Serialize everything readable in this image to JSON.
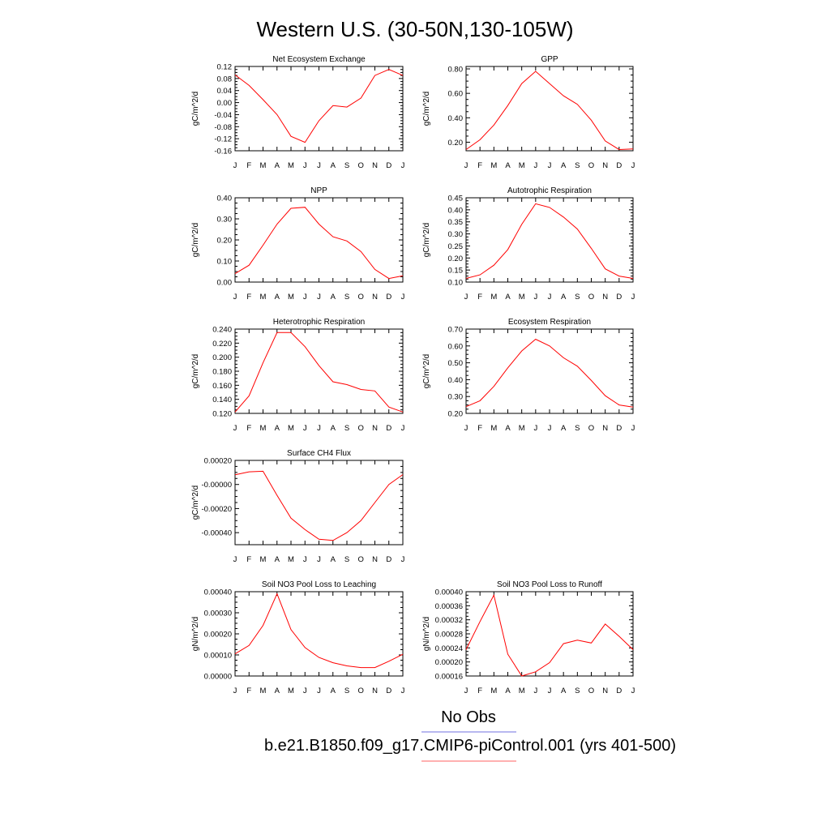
{
  "page": {
    "title": "Western U.S. (30-50N,130-105W)"
  },
  "legend": {
    "entries": [
      {
        "label": "No Obs",
        "color": "#7070e0"
      },
      {
        "label": "b.e21.B1850.f09_g17.CMIP6-piControl.001 (yrs 401-500)",
        "color": "#ff6060"
      }
    ]
  },
  "chart_data": [
    {
      "type": "line",
      "title": "Net Ecosystem Exchange",
      "ylabel": "gC/m^2/d",
      "x": [
        "J",
        "F",
        "M",
        "A",
        "M",
        "J",
        "J",
        "A",
        "S",
        "O",
        "N",
        "D",
        "J"
      ],
      "ylim": [
        -0.16,
        0.12
      ],
      "yticks": [
        "0.12",
        "0.08",
        "0.04",
        "0.00",
        "-0.04",
        "-0.08",
        "-0.12",
        "-0.16"
      ],
      "series": [
        {
          "color": "#ff0000",
          "values": [
            0.092,
            0.057,
            0.01,
            -0.04,
            -0.112,
            -0.132,
            -0.06,
            -0.01,
            -0.015,
            0.015,
            0.09,
            0.11,
            0.09
          ]
        }
      ],
      "grid": false
    },
    {
      "type": "line",
      "title": "GPP",
      "ylabel": "gC/m^2/d",
      "x": [
        "J",
        "F",
        "M",
        "A",
        "M",
        "J",
        "J",
        "A",
        "S",
        "O",
        "N",
        "D",
        "J"
      ],
      "ylim": [
        0.13,
        0.82
      ],
      "yticks": [
        "0.80",
        "0.60",
        "0.40",
        "0.20"
      ],
      "series": [
        {
          "color": "#ff0000",
          "values": [
            0.14,
            0.22,
            0.34,
            0.5,
            0.68,
            0.78,
            0.68,
            0.58,
            0.51,
            0.38,
            0.21,
            0.14,
            0.145
          ]
        }
      ],
      "grid": false
    },
    {
      "type": "line",
      "title": "NPP",
      "ylabel": "gC/m^2/d",
      "x": [
        "J",
        "F",
        "M",
        "A",
        "M",
        "J",
        "J",
        "A",
        "S",
        "O",
        "N",
        "D",
        "J"
      ],
      "ylim": [
        0.0,
        0.4
      ],
      "yticks": [
        "0.40",
        "0.30",
        "0.20",
        "0.10",
        "0.00"
      ],
      "series": [
        {
          "color": "#ff0000",
          "values": [
            0.04,
            0.08,
            0.175,
            0.275,
            0.35,
            0.355,
            0.275,
            0.215,
            0.195,
            0.145,
            0.06,
            0.017,
            0.03
          ]
        }
      ],
      "grid": false
    },
    {
      "type": "line",
      "title": "Autotrophic Respiration",
      "ylabel": "gC/m^2/d",
      "x": [
        "J",
        "F",
        "M",
        "A",
        "M",
        "J",
        "J",
        "A",
        "S",
        "O",
        "N",
        "D",
        "J"
      ],
      "ylim": [
        0.1,
        0.45
      ],
      "yticks": [
        "0.45",
        "0.40",
        "0.35",
        "0.30",
        "0.25",
        "0.20",
        "0.15",
        "0.10"
      ],
      "series": [
        {
          "color": "#ff0000",
          "values": [
            0.115,
            0.13,
            0.17,
            0.235,
            0.34,
            0.425,
            0.41,
            0.37,
            0.32,
            0.24,
            0.155,
            0.125,
            0.115
          ]
        }
      ],
      "grid": false
    },
    {
      "type": "line",
      "title": "Heterotrophic Respiration",
      "ylabel": "gC/m^2/d",
      "x": [
        "J",
        "F",
        "M",
        "A",
        "M",
        "J",
        "J",
        "A",
        "S",
        "O",
        "N",
        "D",
        "J"
      ],
      "ylim": [
        0.12,
        0.24
      ],
      "yticks": [
        "0.240",
        "0.220",
        "0.200",
        "0.180",
        "0.160",
        "0.140",
        "0.120"
      ],
      "series": [
        {
          "color": "#ff0000",
          "values": [
            0.122,
            0.145,
            0.192,
            0.235,
            0.235,
            0.215,
            0.188,
            0.165,
            0.161,
            0.154,
            0.152,
            0.129,
            0.122
          ]
        }
      ],
      "grid": false
    },
    {
      "type": "line",
      "title": "Ecosystem Respiration",
      "ylabel": "gC/m^2/d",
      "x": [
        "J",
        "F",
        "M",
        "A",
        "M",
        "J",
        "J",
        "A",
        "S",
        "O",
        "N",
        "D",
        "J"
      ],
      "ylim": [
        0.2,
        0.7
      ],
      "yticks": [
        "0.70",
        "0.60",
        "0.50",
        "0.40",
        "0.30",
        "0.20"
      ],
      "series": [
        {
          "color": "#ff0000",
          "values": [
            0.24,
            0.275,
            0.36,
            0.47,
            0.57,
            0.64,
            0.6,
            0.53,
            0.48,
            0.395,
            0.305,
            0.25,
            0.237
          ]
        }
      ],
      "grid": false
    },
    {
      "type": "line",
      "title": "Surface CH4 Flux",
      "ylabel": "gC/m^2/d",
      "x": [
        "J",
        "F",
        "M",
        "A",
        "M",
        "J",
        "J",
        "A",
        "S",
        "O",
        "N",
        "D",
        "J"
      ],
      "ylim": [
        -0.0005,
        0.0002
      ],
      "yticks": [
        "0.00020",
        "-0.00000",
        "-0.00020",
        "-0.00040"
      ],
      "series": [
        {
          "color": "#ff0000",
          "values": [
            8e-05,
            0.000105,
            0.00011,
            -9e-05,
            -0.00028,
            -0.000375,
            -0.000455,
            -0.000465,
            -0.0004,
            -0.0003,
            -0.00015,
            0.0,
            8.2e-05
          ]
        }
      ],
      "grid": false
    },
    {
      "type": "line",
      "title": "Soil NO3 Pool Loss to Leaching",
      "ylabel": "gN/m^2/d",
      "x": [
        "J",
        "F",
        "M",
        "A",
        "M",
        "J",
        "J",
        "A",
        "S",
        "O",
        "N",
        "D",
        "J"
      ],
      "ylim": [
        0.0,
        0.0004
      ],
      "yticks": [
        "0.00040",
        "0.00030",
        "0.00020",
        "0.00010",
        "0.00000"
      ],
      "series": [
        {
          "color": "#ff0000",
          "values": [
            0.000105,
            0.000145,
            0.00024,
            0.00039,
            0.00022,
            0.000135,
            8.8e-05,
            6.3e-05,
            4.8e-05,
            4e-05,
            4e-05,
            7e-05,
            0.000103
          ]
        }
      ],
      "grid": false
    },
    {
      "type": "line",
      "title": "Soil NO3 Pool Loss to Runoff",
      "ylabel": "gN/m^2/d",
      "x": [
        "J",
        "F",
        "M",
        "A",
        "M",
        "J",
        "J",
        "A",
        "S",
        "O",
        "N",
        "D",
        "J"
      ],
      "ylim": [
        0.00016,
        0.0004
      ],
      "yticks": [
        "0.00040",
        "0.00036",
        "0.00032",
        "0.00028",
        "0.00024",
        "0.00020",
        "0.00016"
      ],
      "series": [
        {
          "color": "#ff0000",
          "values": [
            0.000235,
            0.000315,
            0.00039,
            0.000222,
            0.00016,
            0.000172,
            0.000198,
            0.000252,
            0.000262,
            0.000254,
            0.000308,
            0.000273,
            0.000235
          ]
        }
      ],
      "grid": false
    }
  ]
}
